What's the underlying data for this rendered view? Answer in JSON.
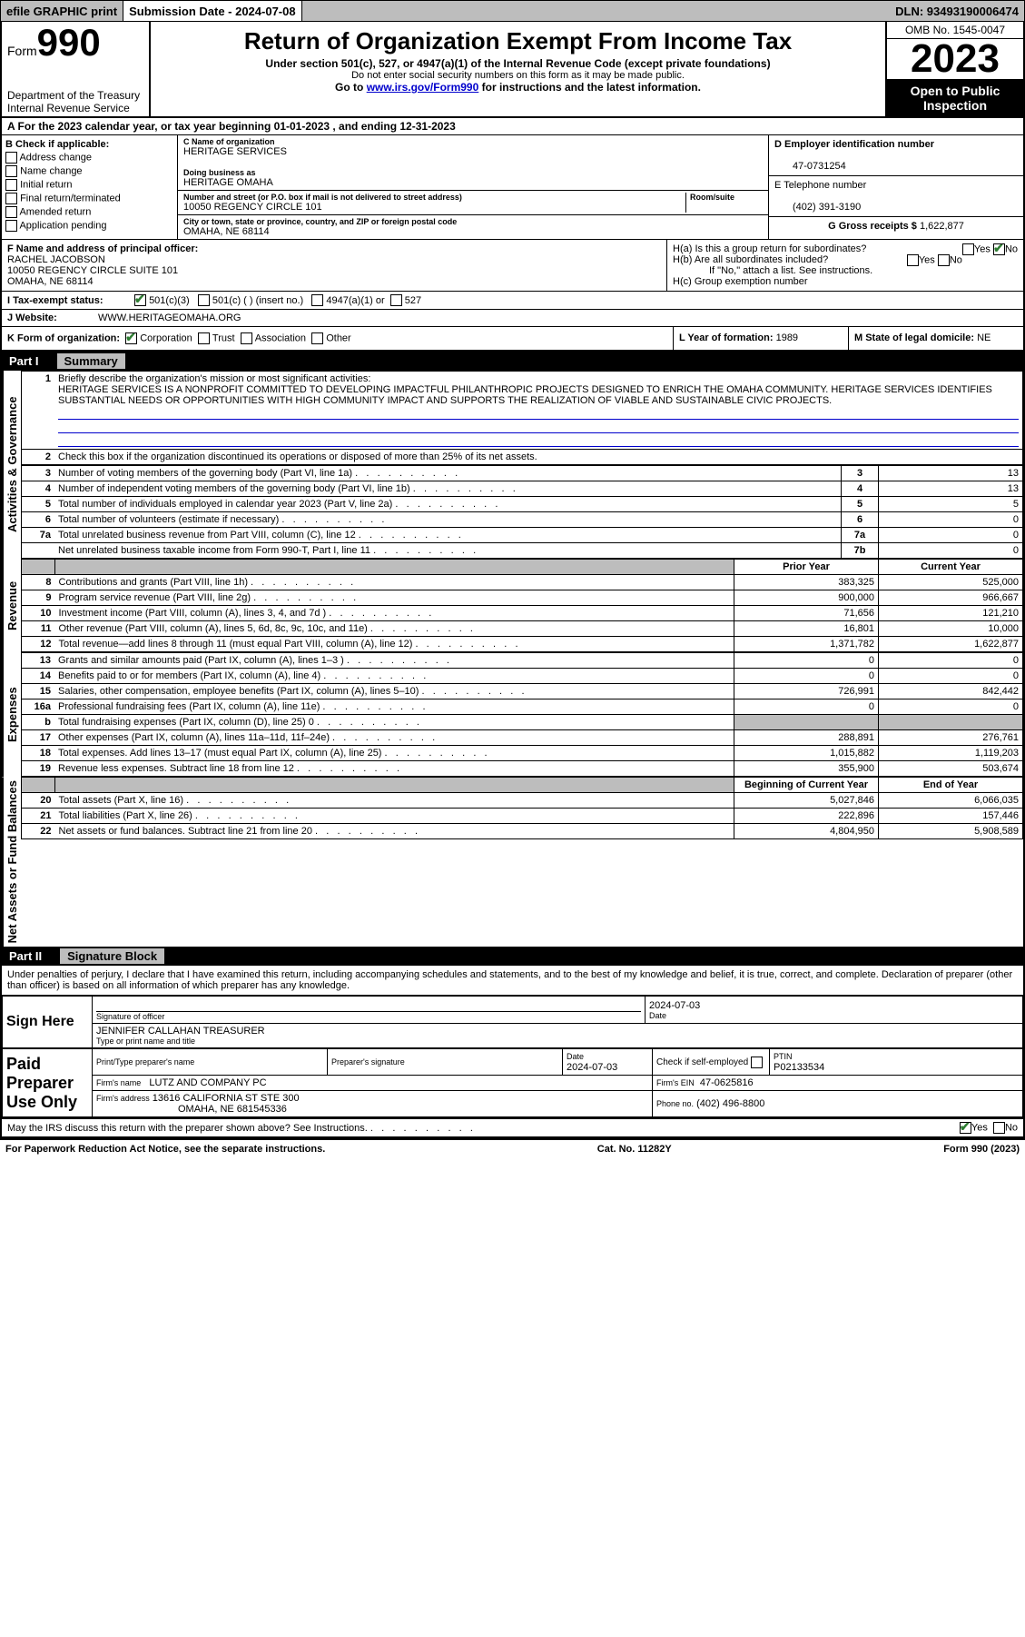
{
  "topbar": {
    "efile": "efile GRAPHIC print",
    "sub_label": "Submission Date - 2024-07-08",
    "dln": "DLN: 93493190006474"
  },
  "header": {
    "form_small": "Form",
    "form_num": "990",
    "dept": "Department of the Treasury\nInternal Revenue Service",
    "title": "Return of Organization Exempt From Income Tax",
    "sub1": "Under section 501(c), 527, or 4947(a)(1) of the Internal Revenue Code (except private foundations)",
    "sub2": "Do not enter social security numbers on this form as it may be made public.",
    "sub3_pre": "Go to ",
    "sub3_link": "www.irs.gov/Form990",
    "sub3_post": " for instructions and the latest information.",
    "omb": "OMB No. 1545-0047",
    "year": "2023",
    "open": "Open to Public Inspection"
  },
  "row_a": "A For the 2023 calendar year, or tax year beginning 01-01-2023   , and ending 12-31-2023",
  "col_b": {
    "title": "B Check if applicable:",
    "items": [
      "Address change",
      "Name change",
      "Initial return",
      "Final return/terminated",
      "Amended return",
      "Application pending"
    ]
  },
  "col_c": {
    "name_lbl": "C Name of organization",
    "name": "HERITAGE SERVICES",
    "dba_lbl": "Doing business as",
    "dba": "HERITAGE OMAHA",
    "addr_lbl": "Number and street (or P.O. box if mail is not delivered to street address)",
    "room_lbl": "Room/suite",
    "addr": "10050 REGENCY CIRCLE 101",
    "city_lbl": "City or town, state or province, country, and ZIP or foreign postal code",
    "city": "OMAHA, NE  68114"
  },
  "col_de": {
    "d_lbl": "D Employer identification number",
    "d_val": "47-0731254",
    "e_lbl": "E Telephone number",
    "e_val": "(402) 391-3190",
    "g_lbl": "G Gross receipts $",
    "g_val": "1,622,877"
  },
  "sec_f": {
    "lbl": "F Name and address of principal officer:",
    "name": "RACHEL JACOBSON",
    "addr1": "10050 REGENCY CIRCLE SUITE 101",
    "addr2": "OMAHA, NE  68114"
  },
  "sec_h": {
    "ha": "H(a)  Is this a group return for subordinates?",
    "hb": "H(b)  Are all subordinates included?",
    "hb2": "If \"No,\" attach a list. See instructions.",
    "hc": "H(c)  Group exemption number"
  },
  "row_i": {
    "lbl": "I    Tax-exempt status:",
    "o1": "501(c)(3)",
    "o2": "501(c) (  ) (insert no.)",
    "o3": "4947(a)(1) or",
    "o4": "527"
  },
  "row_j": {
    "lbl": "J    Website:",
    "val": "WWW.HERITAGEOMAHA.ORG"
  },
  "row_k": {
    "lbl": "K Form of organization:",
    "o1": "Corporation",
    "o2": "Trust",
    "o3": "Association",
    "o4": "Other"
  },
  "row_l": {
    "lbl": "L Year of formation:",
    "val": "1989"
  },
  "row_m": {
    "lbl": "M State of legal domicile:",
    "val": "NE"
  },
  "part1": {
    "hdr": "Part I",
    "title": "Summary",
    "q1": "Briefly describe the organization's mission or most significant activities:",
    "mission": "HERITAGE SERVICES IS A NONPROFIT COMMITTED TO DEVELOPING IMPACTFUL PHILANTHROPIC PROJECTS DESIGNED TO ENRICH THE OMAHA COMMUNITY. HERITAGE SERVICES IDENTIFIES SUBSTANTIAL NEEDS OR OPPORTUNITIES WITH HIGH COMMUNITY IMPACT AND SUPPORTS THE REALIZATION OF VIABLE AND SUSTAINABLE CIVIC PROJECTS.",
    "q2": "Check this box        if the organization discontinued its operations or disposed of more than 25% of its net assets.",
    "vlabel_gov": "Activities & Governance",
    "vlabel_rev": "Revenue",
    "vlabel_exp": "Expenses",
    "vlabel_net": "Net Assets or Fund Balances",
    "rows_gov": [
      {
        "n": "3",
        "d": "Number of voting members of the governing body (Part VI, line 1a)",
        "b": "3",
        "v": "13"
      },
      {
        "n": "4",
        "d": "Number of independent voting members of the governing body (Part VI, line 1b)",
        "b": "4",
        "v": "13"
      },
      {
        "n": "5",
        "d": "Total number of individuals employed in calendar year 2023 (Part V, line 2a)",
        "b": "5",
        "v": "5"
      },
      {
        "n": "6",
        "d": "Total number of volunteers (estimate if necessary)",
        "b": "6",
        "v": "0"
      },
      {
        "n": "7a",
        "d": "Total unrelated business revenue from Part VIII, column (C), line 12",
        "b": "7a",
        "v": "0"
      },
      {
        "n": "",
        "d": "Net unrelated business taxable income from Form 990-T, Part I, line 11",
        "b": "7b",
        "v": "0"
      }
    ],
    "hdr_prior": "Prior Year",
    "hdr_curr": "Current Year",
    "rows_rev": [
      {
        "n": "8",
        "d": "Contributions and grants (Part VIII, line 1h)",
        "p": "383,325",
        "c": "525,000"
      },
      {
        "n": "9",
        "d": "Program service revenue (Part VIII, line 2g)",
        "p": "900,000",
        "c": "966,667"
      },
      {
        "n": "10",
        "d": "Investment income (Part VIII, column (A), lines 3, 4, and 7d )",
        "p": "71,656",
        "c": "121,210"
      },
      {
        "n": "11",
        "d": "Other revenue (Part VIII, column (A), lines 5, 6d, 8c, 9c, 10c, and 11e)",
        "p": "16,801",
        "c": "10,000"
      },
      {
        "n": "12",
        "d": "Total revenue—add lines 8 through 11 (must equal Part VIII, column (A), line 12)",
        "p": "1,371,782",
        "c": "1,622,877"
      }
    ],
    "rows_exp": [
      {
        "n": "13",
        "d": "Grants and similar amounts paid (Part IX, column (A), lines 1–3 )",
        "p": "0",
        "c": "0"
      },
      {
        "n": "14",
        "d": "Benefits paid to or for members (Part IX, column (A), line 4)",
        "p": "0",
        "c": "0"
      },
      {
        "n": "15",
        "d": "Salaries, other compensation, employee benefits (Part IX, column (A), lines 5–10)",
        "p": "726,991",
        "c": "842,442"
      },
      {
        "n": "16a",
        "d": "Professional fundraising fees (Part IX, column (A), line 11e)",
        "p": "0",
        "c": "0"
      },
      {
        "n": "b",
        "d": "Total fundraising expenses (Part IX, column (D), line 25) 0",
        "p": "gray",
        "c": "gray"
      },
      {
        "n": "17",
        "d": "Other expenses (Part IX, column (A), lines 11a–11d, 11f–24e)",
        "p": "288,891",
        "c": "276,761"
      },
      {
        "n": "18",
        "d": "Total expenses. Add lines 13–17 (must equal Part IX, column (A), line 25)",
        "p": "1,015,882",
        "c": "1,119,203"
      },
      {
        "n": "19",
        "d": "Revenue less expenses. Subtract line 18 from line 12",
        "p": "355,900",
        "c": "503,674"
      }
    ],
    "hdr_beg": "Beginning of Current Year",
    "hdr_end": "End of Year",
    "rows_net": [
      {
        "n": "20",
        "d": "Total assets (Part X, line 16)",
        "p": "5,027,846",
        "c": "6,066,035"
      },
      {
        "n": "21",
        "d": "Total liabilities (Part X, line 26)",
        "p": "222,896",
        "c": "157,446"
      },
      {
        "n": "22",
        "d": "Net assets or fund balances. Subtract line 21 from line 20",
        "p": "4,804,950",
        "c": "5,908,589"
      }
    ]
  },
  "part2": {
    "hdr": "Part II",
    "title": "Signature Block",
    "perjury": "Under penalties of perjury, I declare that I have examined this return, including accompanying schedules and statements, and to the best of my knowledge and belief, it is true, correct, and complete. Declaration of preparer (other than officer) is based on all information of which preparer has any knowledge.",
    "sign_here": "Sign Here",
    "sig_off_lbl": "Signature of officer",
    "sig_date": "2024-07-03",
    "sig_date_lbl": "Date",
    "sig_name": "JENNIFER CALLAHAN TREASURER",
    "sig_name_lbl": "Type or print name and title",
    "paid": "Paid Preparer Use Only",
    "prep_name_lbl": "Print/Type preparer's name",
    "prep_sig_lbl": "Preparer's signature",
    "prep_date_lbl": "Date",
    "prep_date": "2024-07-03",
    "prep_check": "Check        if self-employed",
    "ptin_lbl": "PTIN",
    "ptin": "P02133534",
    "firm_name_lbl": "Firm's name",
    "firm_name": "LUTZ AND COMPANY PC",
    "firm_ein_lbl": "Firm's EIN",
    "firm_ein": "47-0625816",
    "firm_addr_lbl": "Firm's address",
    "firm_addr1": "13616 CALIFORNIA ST STE 300",
    "firm_addr2": "OMAHA, NE  681545336",
    "firm_phone_lbl": "Phone no.",
    "firm_phone": "(402) 496-8800",
    "discuss": "May the IRS discuss this return with the preparer shown above? See Instructions."
  },
  "footer": {
    "left": "For Paperwork Reduction Act Notice, see the separate instructions.",
    "mid": "Cat. No. 11282Y",
    "right": "Form 990 (2023)"
  },
  "colors": {
    "bar_bg": "#bdbdbd",
    "link": "#0000cc",
    "check": "#2e7d32"
  }
}
